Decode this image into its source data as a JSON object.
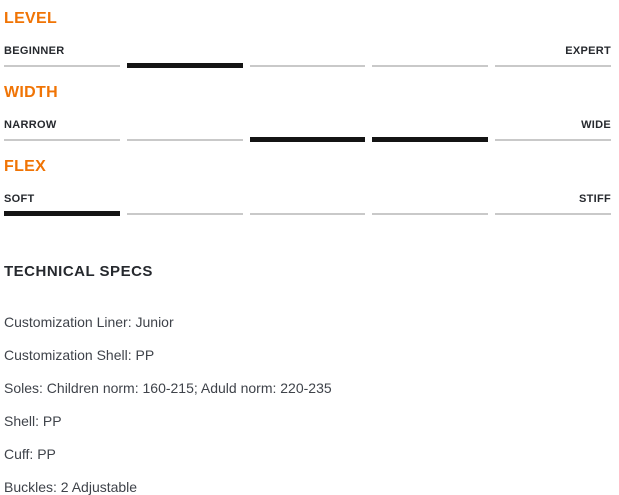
{
  "colors": {
    "accent": "#f07405",
    "heading_text": "#26292e",
    "body_text": "#3f434a",
    "bar_inactive": "#c9c9c9",
    "bar_active": "#141414"
  },
  "scales": [
    {
      "title": "LEVEL",
      "left_label": "BEGINNER",
      "right_label": "EXPERT",
      "segments": 5,
      "active_segments": [
        2
      ]
    },
    {
      "title": "WIDTH",
      "left_label": "NARROW",
      "right_label": "WIDE",
      "segments": 5,
      "active_segments": [
        3,
        4
      ]
    },
    {
      "title": "FLEX",
      "left_label": "SOFT",
      "right_label": "STIFF",
      "segments": 5,
      "active_segments": [
        1
      ]
    }
  ],
  "technical_specs": {
    "title": "TECHNICAL SPECS",
    "items": [
      "Customization Liner: Junior",
      "Customization Shell: PP",
      "Soles: Children norm: 160-215; Aduld norm: 220-235",
      "Shell: PP",
      "Cuff: PP",
      "Buckles: 2 Adjustable"
    ]
  }
}
